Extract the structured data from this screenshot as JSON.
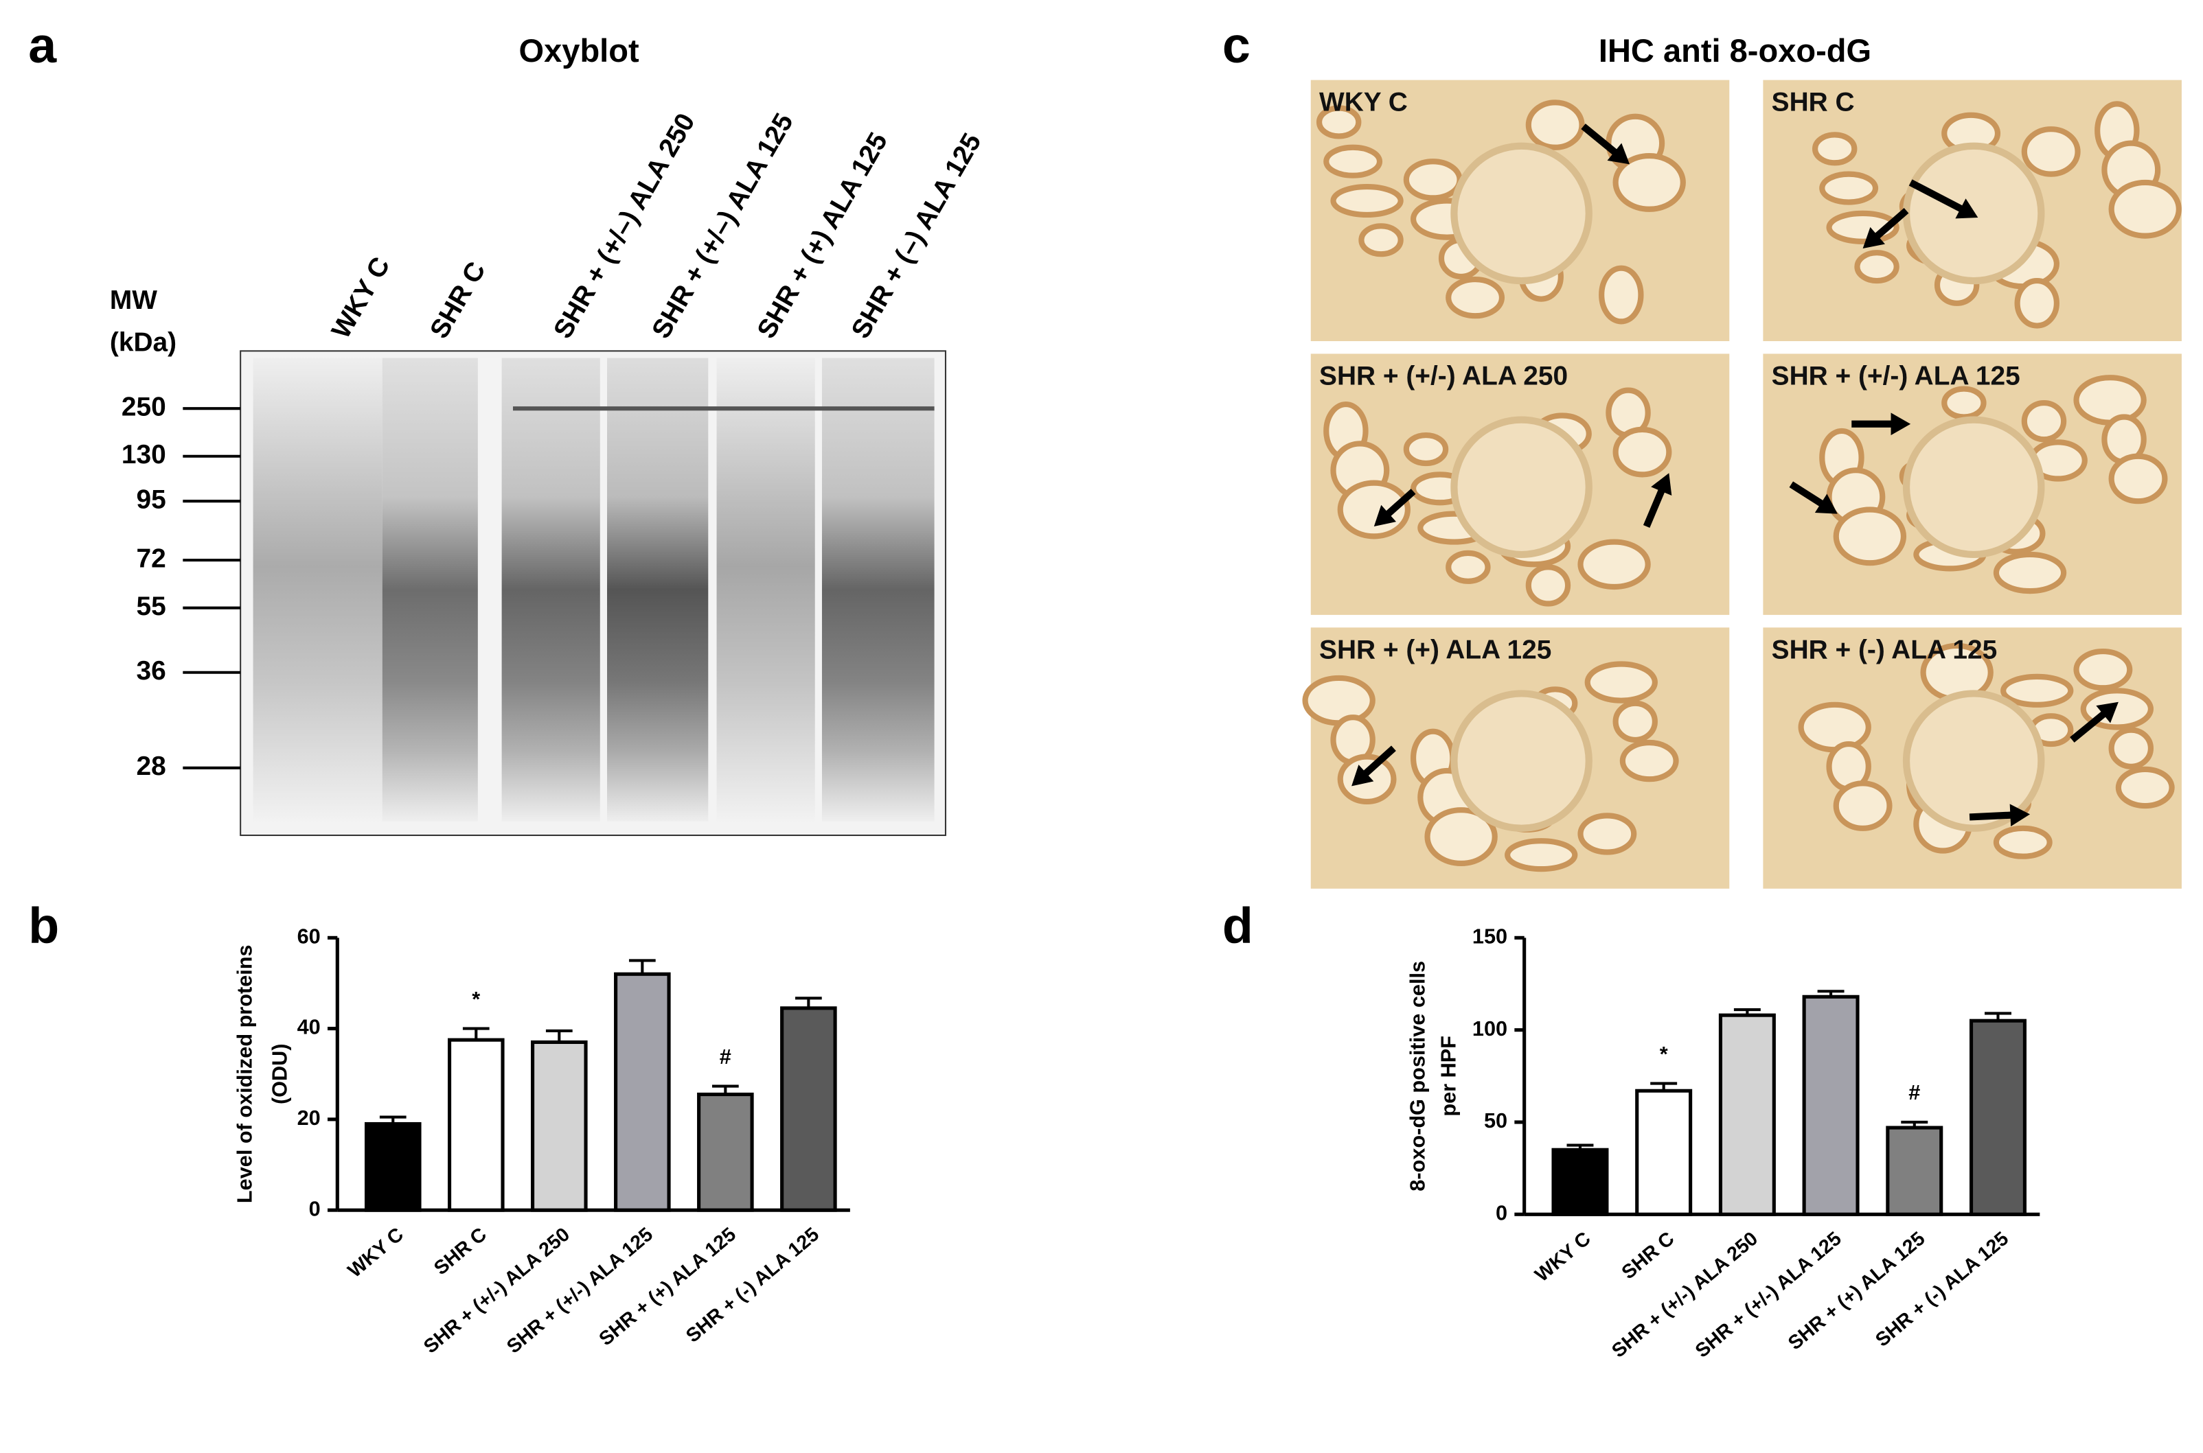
{
  "panel_labels": [
    "a",
    "b",
    "c",
    "d"
  ],
  "oxyblot": {
    "title": "Oxyblot",
    "mw_label": [
      "MW",
      "(kDa)"
    ],
    "lanes": [
      "WKY C",
      "SHR C",
      "SHR + (+/–) ALA 250",
      "SHR + (+/–) ALA 125",
      "SHR + (+) ALA 125",
      "SHR + (–) ALA 125"
    ],
    "markers": [
      250,
      130,
      95,
      72,
      55,
      36,
      28
    ]
  },
  "ihc": {
    "title": "IHC anti 8-oxo-dG",
    "images": [
      "WKY C",
      "SHR C",
      "SHR + (+/-) ALA 250",
      "SHR + (+/-) ALA 125",
      "SHR + (+) ALA 125",
      "SHR + (-) ALA 125"
    ]
  },
  "chart_data": [
    {
      "type": "bar",
      "y_label": [
        "Level of oxidized proteins",
        "(ODU)"
      ],
      "categories": [
        "WKY C",
        "SHR C",
        "SHR + (+/-) ALA 250",
        "SHR + (+/-) ALA 125",
        "SHR + (+) ALA 125",
        "SHR + (-) ALA 125"
      ],
      "values": [
        19,
        37.5,
        37,
        52,
        25.5,
        44.5
      ],
      "errors": [
        1.5,
        2.5,
        2.5,
        3,
        1.8,
        2.2
      ],
      "colors": [
        "#000000",
        "#ffffff",
        "#d3d3d3",
        "#a2a2aa",
        "#808080",
        "#5a5a5a"
      ],
      "annotations": [
        {
          "text": "*",
          "category": "SHR C"
        },
        {
          "text": "#",
          "category": "SHR + (+) ALA 125"
        }
      ],
      "ylim": [
        0,
        60
      ],
      "yticks": [
        0,
        20,
        40,
        60
      ]
    },
    {
      "type": "bar",
      "y_label": [
        "8-oxo-dG positive cells",
        "per HPF"
      ],
      "categories": [
        "WKY C",
        "SHR C",
        "SHR + (+/-) ALA 250",
        "SHR + (+/-) ALA 125",
        "SHR + (+) ALA 125",
        "SHR + (-) ALA 125"
      ],
      "values": [
        35,
        67,
        108,
        118,
        47,
        105
      ],
      "errors": [
        2.5,
        4,
        3,
        3,
        3,
        4
      ],
      "colors": [
        "#000000",
        "#ffffff",
        "#d3d3d3",
        "#a2a2aa",
        "#808080",
        "#5a5a5a"
      ],
      "annotations": [
        {
          "text": "*",
          "category": "SHR C"
        },
        {
          "text": "#",
          "category": "SHR + (+) ALA 125"
        }
      ],
      "ylim": [
        0,
        150
      ],
      "yticks": [
        0,
        50,
        100,
        150
      ]
    }
  ]
}
